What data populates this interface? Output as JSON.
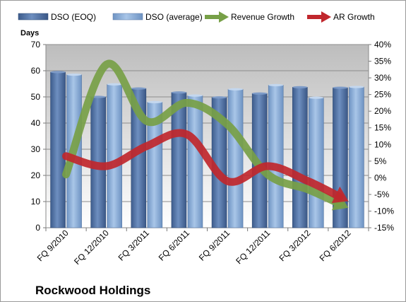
{
  "chart_data": {
    "type": "bar",
    "title": "",
    "company": "Rockwood Holdings",
    "ylabel": "Days",
    "ylim": [
      0,
      70
    ],
    "yticks": [
      "0",
      "10",
      "20",
      "30",
      "40",
      "50",
      "60",
      "70"
    ],
    "y2lim": [
      -15,
      40
    ],
    "y2ticks": [
      "-15%",
      "-10%",
      "-5%",
      "0%",
      "5%",
      "10%",
      "15%",
      "20%",
      "25%",
      "30%",
      "35%",
      "40%"
    ],
    "categories": [
      "FQ 9/2010",
      "FQ 12/2010",
      "FQ 3/2011",
      "FQ 6/2011",
      "FQ 9/2011",
      "FQ 12/2011",
      "FQ 3/2012",
      "FQ 6/2012"
    ],
    "series": [
      {
        "name": "DSO (EOQ)",
        "type": "bar",
        "axis": "left",
        "color": "#4f6f9f",
        "values": [
          59.5,
          50,
          53.2,
          51.7,
          49.8,
          51.3,
          53.7,
          53.5
        ]
      },
      {
        "name": "DSO (average)",
        "type": "bar",
        "axis": "left",
        "color": "#8fb0d8",
        "values": [
          58.5,
          54.8,
          48,
          50.5,
          52.9,
          54.5,
          49.7,
          53.8
        ]
      },
      {
        "name": "Revenue Growth",
        "type": "line-arrow",
        "axis": "right",
        "unit": "%",
        "color": "#77a047",
        "values": [
          1,
          34,
          17,
          22.5,
          16,
          1,
          -3.5,
          -9
        ]
      },
      {
        "name": "AR Growth",
        "type": "line-arrow",
        "axis": "right",
        "unit": "%",
        "color": "#c0272d",
        "values": [
          6.5,
          3.5,
          9.5,
          13,
          -1,
          3.5,
          -1,
          -7
        ]
      }
    ],
    "legend_position": "top",
    "grid": true
  }
}
